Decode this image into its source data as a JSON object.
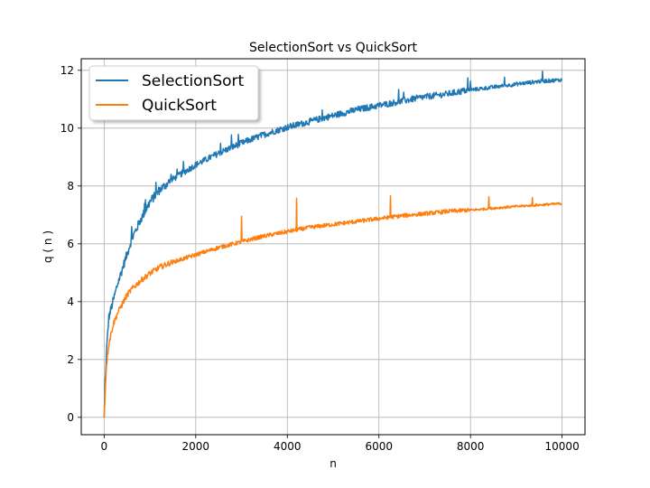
{
  "chart_data": {
    "type": "line",
    "title": "SelectionSort vs QuickSort",
    "xlabel": "n",
    "ylabel": "q ( n )",
    "xlim": [
      -500,
      10500
    ],
    "ylim": [
      -0.6,
      12.4
    ],
    "xticks": [
      0,
      2000,
      4000,
      6000,
      8000,
      10000
    ],
    "yticks": [
      0,
      2,
      4,
      6,
      8,
      10,
      12
    ],
    "grid": true,
    "legend_position": "top-left",
    "series": [
      {
        "name": "SelectionSort",
        "color": "#1f77b4",
        "x": [
          1,
          50,
          100,
          200,
          300,
          400,
          500,
          600,
          800,
          1000,
          1200,
          1500,
          2000,
          2500,
          3000,
          3500,
          4000,
          4500,
          5000,
          5500,
          6000,
          6500,
          7000,
          7500,
          8000,
          8500,
          9000,
          9500,
          10000
        ],
        "y": [
          0.0,
          2.2,
          3.4,
          4.0,
          4.6,
          5.1,
          5.6,
          6.1,
          6.8,
          7.4,
          7.8,
          8.2,
          8.7,
          9.1,
          9.45,
          9.75,
          10.0,
          10.2,
          10.4,
          10.6,
          10.75,
          10.9,
          11.05,
          11.15,
          11.3,
          11.4,
          11.5,
          11.6,
          11.65
        ]
      },
      {
        "name": "QuickSort",
        "color": "#ff7f0e",
        "x": [
          1,
          50,
          100,
          200,
          300,
          400,
          500,
          600,
          800,
          1000,
          1200,
          1500,
          2000,
          2500,
          3000,
          3500,
          4000,
          4500,
          5000,
          5500,
          6000,
          6500,
          7000,
          7500,
          8000,
          8500,
          9000,
          9500,
          10000
        ],
        "y": [
          0.0,
          1.8,
          2.5,
          3.2,
          3.6,
          3.9,
          4.2,
          4.4,
          4.7,
          4.95,
          5.15,
          5.35,
          5.6,
          5.85,
          6.05,
          6.25,
          6.4,
          6.55,
          6.65,
          6.75,
          6.85,
          6.95,
          7.02,
          7.1,
          7.15,
          7.22,
          7.28,
          7.33,
          7.38
        ]
      }
    ]
  }
}
